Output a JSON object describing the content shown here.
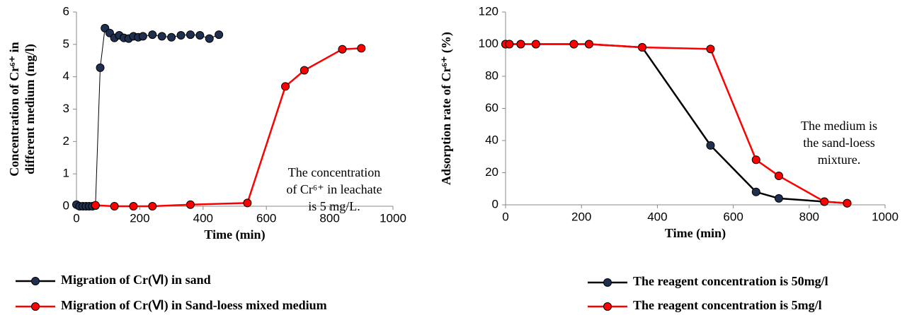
{
  "chart_data": [
    {
      "type": "line",
      "x_label": "Time (min)",
      "y_label": [
        "Concentration of Cr⁶⁺ in",
        "different medium (mg/l)"
      ],
      "annotation": [
        "The concentration",
        "of Cr⁶⁺ in leachate",
        "is 5 mg/L."
      ],
      "xlim": [
        0,
        1000
      ],
      "xticks": [
        0,
        200,
        400,
        600,
        800,
        1000
      ],
      "ylim": [
        0,
        6
      ],
      "yticks": [
        0,
        1,
        2,
        3,
        4,
        5,
        6
      ],
      "grid": false,
      "legend": "bottom",
      "series": [
        {
          "name": "Migration of Cr(Ⅵ) in sand",
          "color": "#000000",
          "x": [
            0,
            10,
            20,
            30,
            40,
            50,
            60,
            75,
            90,
            105,
            120,
            135,
            150,
            165,
            180,
            195,
            210,
            240,
            270,
            300,
            330,
            360,
            390,
            420,
            450
          ],
          "values": [
            0.05,
            0,
            0,
            0,
            0,
            0,
            0.02,
            4.28,
            5.5,
            5.35,
            5.2,
            5.28,
            5.2,
            5.18,
            5.25,
            5.22,
            5.25,
            5.3,
            5.25,
            5.22,
            5.28,
            5.3,
            5.28,
            5.18,
            5.3
          ]
        },
        {
          "name": "Migration of Cr(Ⅵ) in Sand-loess mixed medium",
          "color": "#ff0000",
          "x": [
            60,
            120,
            180,
            240,
            360,
            540,
            660,
            720,
            840,
            900
          ],
          "values": [
            0.03,
            0,
            0,
            0,
            0.05,
            0.1,
            3.7,
            4.2,
            4.85,
            4.88
          ]
        }
      ]
    },
    {
      "type": "line",
      "x_label": "Time (min)",
      "y_label": [
        "Adsorption rate of Cr⁶⁺ (%)"
      ],
      "annotation": [
        "The medium is",
        "the sand-loess",
        "mixture."
      ],
      "xlim": [
        0,
        1000
      ],
      "xticks": [
        0,
        200,
        400,
        600,
        800,
        1000
      ],
      "ylim": [
        0,
        120
      ],
      "yticks": [
        0,
        20,
        40,
        60,
        80,
        100,
        120
      ],
      "grid": false,
      "legend": "bottom",
      "series": [
        {
          "name": "The reagent concentration is 50mg/l",
          "color": "#000000",
          "x": [
            0,
            10,
            40,
            80,
            180,
            220,
            360,
            540,
            660,
            720,
            840,
            900
          ],
          "values": [
            100,
            100,
            100,
            100,
            100,
            100,
            98,
            37,
            8,
            4,
            2,
            1
          ]
        },
        {
          "name": "The reagent concentration is 5mg/l",
          "color": "#ff0000",
          "x": [
            0,
            10,
            40,
            80,
            180,
            220,
            360,
            540,
            660,
            720,
            840,
            900
          ],
          "values": [
            100,
            100,
            100,
            100,
            100,
            100,
            98,
            97,
            28,
            18,
            2,
            1
          ]
        }
      ]
    }
  ]
}
